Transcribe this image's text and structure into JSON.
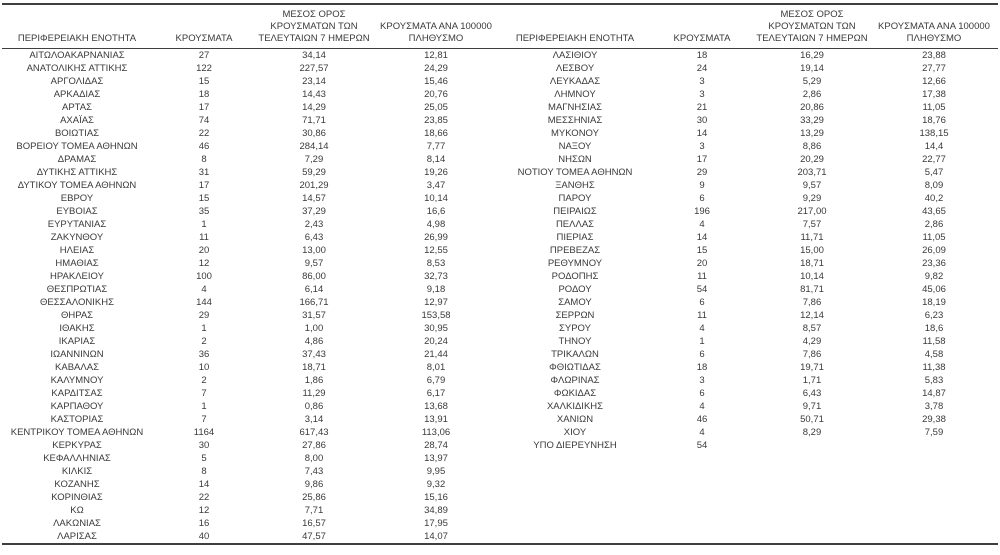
{
  "colors": {
    "background": "#ffffff",
    "text": "#3a3a3a",
    "border": "#3f3f3f"
  },
  "table": {
    "headers": [
      "ΠΕΡΙΦΕΡΕΙΑΚΗ ΕΝΟΤΗΤΑ",
      "ΚΡΟΥΣΜΑΤΑ",
      "ΜΕΣΟΣ ΟΡΟΣ\nΚΡΟΥΣΜΑΤΩΝ ΤΩΝ\nΤΕΛΕΥΤΑΙΩΝ 7 ΗΜΕΡΩΝ",
      "ΚΡΟΥΣΜΑΤΑ ΑΝΑ 100000\nΠΛΗΘΥΣΜΟ"
    ],
    "left_rows": [
      [
        "ΑΙΤΩΛΟΑΚΑΡΝΑΝΙΑΣ",
        "27",
        "34,14",
        "12,81"
      ],
      [
        "ΑΝΑΤΟΛΙΚΗΣ ΑΤΤΙΚΗΣ",
        "122",
        "227,57",
        "24,29"
      ],
      [
        "ΑΡΓΟΛΙΔΑΣ",
        "15",
        "23,14",
        "15,46"
      ],
      [
        "ΑΡΚΑΔΙΑΣ",
        "18",
        "14,43",
        "20,76"
      ],
      [
        "ΑΡΤΑΣ",
        "17",
        "14,29",
        "25,05"
      ],
      [
        "ΑΧΑΪΑΣ",
        "74",
        "71,71",
        "23,85"
      ],
      [
        "ΒΟΙΩΤΙΑΣ",
        "22",
        "30,86",
        "18,66"
      ],
      [
        "ΒΟΡΕΙΟΥ ΤΟΜΕΑ ΑΘΗΝΩΝ",
        "46",
        "284,14",
        "7,77"
      ],
      [
        "ΔΡΑΜΑΣ",
        "8",
        "7,29",
        "8,14"
      ],
      [
        "ΔΥΤΙΚΗΣ ΑΤΤΙΚΗΣ",
        "31",
        "59,29",
        "19,26"
      ],
      [
        "ΔΥΤΙΚΟΥ ΤΟΜΕΑ ΑΘΗΝΩΝ",
        "17",
        "201,29",
        "3,47"
      ],
      [
        "ΕΒΡΟΥ",
        "15",
        "14,57",
        "10,14"
      ],
      [
        "ΕΥΒΟΙΑΣ",
        "35",
        "37,29",
        "16,6"
      ],
      [
        "ΕΥΡΥΤΑΝΙΑΣ",
        "1",
        "2,43",
        "4,98"
      ],
      [
        "ΖΑΚΥΝΘΟΥ",
        "11",
        "6,43",
        "26,99"
      ],
      [
        "ΗΛΕΙΑΣ",
        "20",
        "13,00",
        "12,55"
      ],
      [
        "ΗΜΑΘΙΑΣ",
        "12",
        "9,57",
        "8,53"
      ],
      [
        "ΗΡΑΚΛΕΙΟΥ",
        "100",
        "86,00",
        "32,73"
      ],
      [
        "ΘΕΣΠΡΩΤΙΑΣ",
        "4",
        "6,14",
        "9,18"
      ],
      [
        "ΘΕΣΣΑΛΟΝΙΚΗΣ",
        "144",
        "166,71",
        "12,97"
      ],
      [
        "ΘΗΡΑΣ",
        "29",
        "31,57",
        "153,58"
      ],
      [
        "ΙΘΑΚΗΣ",
        "1",
        "1,00",
        "30,95"
      ],
      [
        "ΙΚΑΡΙΑΣ",
        "2",
        "4,86",
        "20,24"
      ],
      [
        "ΙΩΑΝΝΙΝΩΝ",
        "36",
        "37,43",
        "21,44"
      ],
      [
        "ΚΑΒΑΛΑΣ",
        "10",
        "18,71",
        "8,01"
      ],
      [
        "ΚΑΛΥΜΝΟΥ",
        "2",
        "1,86",
        "6,79"
      ],
      [
        "ΚΑΡΔΙΤΣΑΣ",
        "7",
        "11,29",
        "6,17"
      ],
      [
        "ΚΑΡΠΑΘΟΥ",
        "1",
        "0,86",
        "13,68"
      ],
      [
        "ΚΑΣΤΟΡΙΑΣ",
        "7",
        "3,14",
        "13,91"
      ],
      [
        "ΚΕΝΤΡΙΚΟΥ ΤΟΜΕΑ ΑΘΗΝΩΝ",
        "1164",
        "617,43",
        "113,06"
      ],
      [
        "ΚΕΡΚΥΡΑΣ",
        "30",
        "27,86",
        "28,74"
      ],
      [
        "ΚΕΦΑΛΛΗΝΙΑΣ",
        "5",
        "8,00",
        "13,97"
      ],
      [
        "ΚΙΛΚΙΣ",
        "8",
        "7,43",
        "9,95"
      ],
      [
        "ΚΟΖΑΝΗΣ",
        "14",
        "9,86",
        "9,32"
      ],
      [
        "ΚΟΡΙΝΘΙΑΣ",
        "22",
        "25,86",
        "15,16"
      ],
      [
        "ΚΩ",
        "12",
        "7,71",
        "34,89"
      ],
      [
        "ΛΑΚΩΝΙΑΣ",
        "16",
        "16,57",
        "17,95"
      ],
      [
        "ΛΑΡΙΣΑΣ",
        "40",
        "47,57",
        "14,07"
      ]
    ],
    "right_rows": [
      [
        "ΛΑΣΙΘΙΟΥ",
        "18",
        "16,29",
        "23,88"
      ],
      [
        "ΛΕΣΒΟΥ",
        "24",
        "19,14",
        "27,77"
      ],
      [
        "ΛΕΥΚΑΔΑΣ",
        "3",
        "5,29",
        "12,66"
      ],
      [
        "ΛΗΜΝΟΥ",
        "3",
        "2,86",
        "17,38"
      ],
      [
        "ΜΑΓΝΗΣΙΑΣ",
        "21",
        "20,86",
        "11,05"
      ],
      [
        "ΜΕΣΣΗΝΙΑΣ",
        "30",
        "33,29",
        "18,76"
      ],
      [
        "ΜΥΚΟΝΟΥ",
        "14",
        "13,29",
        "138,15"
      ],
      [
        "ΝΑΞΟΥ",
        "3",
        "8,86",
        "14,4"
      ],
      [
        "ΝΗΣΩΝ",
        "17",
        "20,29",
        "22,77"
      ],
      [
        "ΝΟΤΙΟΥ ΤΟΜΕΑ ΑΘΗΝΩΝ",
        "29",
        "203,71",
        "5,47"
      ],
      [
        "ΞΑΝΘΗΣ",
        "9",
        "9,57",
        "8,09"
      ],
      [
        "ΠΑΡΟΥ",
        "6",
        "9,29",
        "40,2"
      ],
      [
        "ΠΕΙΡΑΙΩΣ",
        "196",
        "217,00",
        "43,65"
      ],
      [
        "ΠΕΛΛΑΣ",
        "4",
        "7,57",
        "2,86"
      ],
      [
        "ΠΙΕΡΙΑΣ",
        "14",
        "11,71",
        "11,05"
      ],
      [
        "ΠΡΕΒΕΖΑΣ",
        "15",
        "15,00",
        "26,09"
      ],
      [
        "ΡΕΘΥΜΝΟΥ",
        "20",
        "18,71",
        "23,36"
      ],
      [
        "ΡΟΔΟΠΗΣ",
        "11",
        "10,14",
        "9,82"
      ],
      [
        "ΡΟΔΟΥ",
        "54",
        "81,71",
        "45,06"
      ],
      [
        "ΣΑΜΟΥ",
        "6",
        "7,86",
        "18,19"
      ],
      [
        "ΣΕΡΡΩΝ",
        "11",
        "12,14",
        "6,23"
      ],
      [
        "ΣΥΡΟΥ",
        "4",
        "8,57",
        "18,6"
      ],
      [
        "ΤΗΝΟΥ",
        "1",
        "4,29",
        "11,58"
      ],
      [
        "ΤΡΙΚΑΛΩΝ",
        "6",
        "7,86",
        "4,58"
      ],
      [
        "ΦΘΙΩΤΙΔΑΣ",
        "18",
        "19,71",
        "11,38"
      ],
      [
        "ΦΛΩΡΙΝΑΣ",
        "3",
        "1,71",
        "5,83"
      ],
      [
        "ΦΩΚΙΔΑΣ",
        "6",
        "6,43",
        "14,87"
      ],
      [
        "ΧΑΛΚΙΔΙΚΗΣ",
        "4",
        "9,71",
        "3,78"
      ],
      [
        "ΧΑΝΙΩΝ",
        "46",
        "50,71",
        "29,38"
      ],
      [
        "ΧΙΟΥ",
        "4",
        "8,29",
        "7,59"
      ],
      [
        "ΥΠΟ ΔΙΕΡΕΥΝΗΣΗ",
        "54",
        "",
        ""
      ]
    ]
  }
}
